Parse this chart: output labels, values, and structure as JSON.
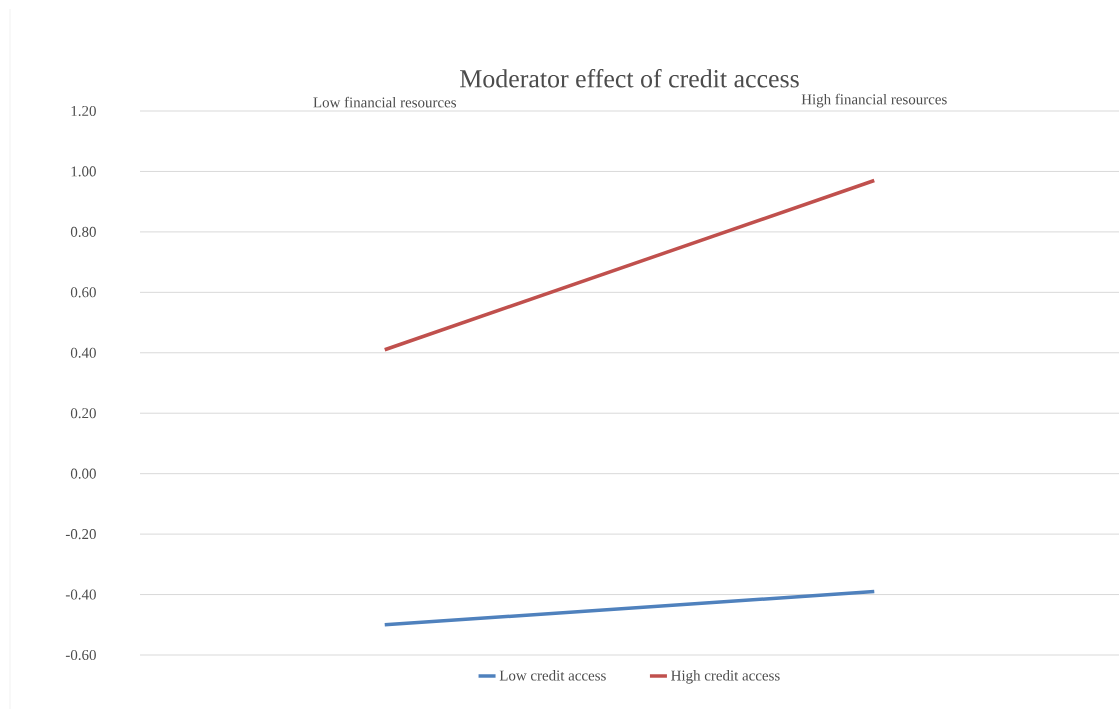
{
  "chart_data": {
    "type": "line",
    "title": "Moderator effect of credit access",
    "categories": [
      "Low financial resources",
      "High financial resources"
    ],
    "series": [
      {
        "name": "Low credit access",
        "color": "#4f81bd",
        "values": [
          -0.5,
          -0.39
        ]
      },
      {
        "name": "High credit access",
        "color": "#c0504d",
        "values": [
          0.41,
          0.97
        ]
      }
    ],
    "ylim": [
      -0.6,
      1.2
    ],
    "yticks": [
      {
        "value": -0.6,
        "label": "-0.60"
      },
      {
        "value": -0.4,
        "label": "-0.40"
      },
      {
        "value": -0.2,
        "label": "-0.20"
      },
      {
        "value": 0,
        "label": "0.00"
      },
      {
        "value": 0.2,
        "label": "0.20"
      },
      {
        "value": 0.4,
        "label": "0.40"
      },
      {
        "value": 0.6,
        "label": "0.60"
      },
      {
        "value": 0.8,
        "label": "0.80"
      },
      {
        "value": 1.0,
        "label": "1.00"
      },
      {
        "value": 1.2,
        "label": "1.20"
      }
    ],
    "grid": "y",
    "legend": "bottom",
    "marker": "none",
    "line_style": "solid"
  }
}
